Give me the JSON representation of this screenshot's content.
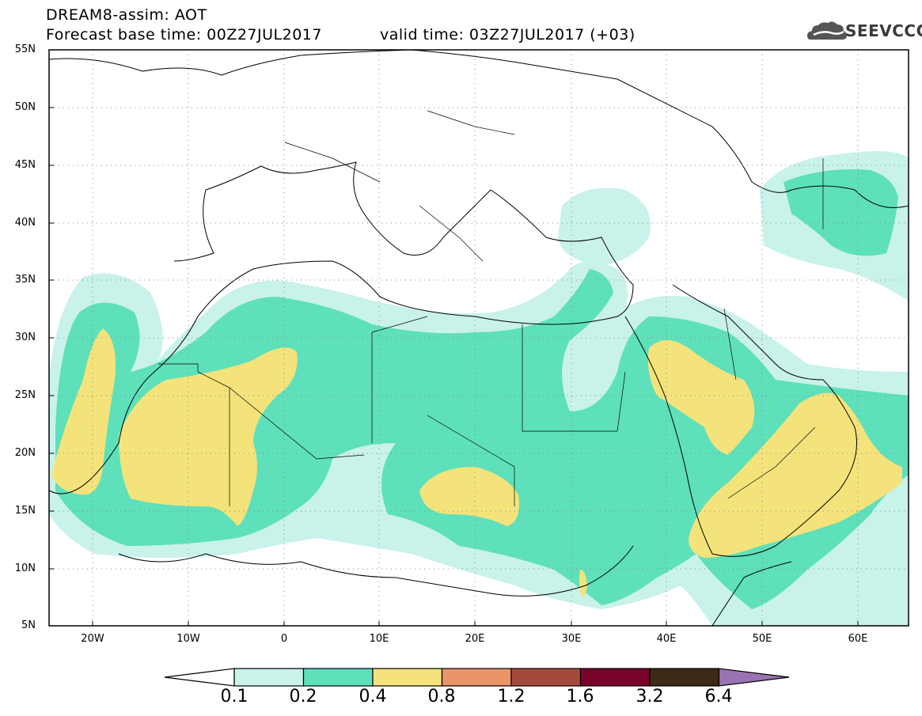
{
  "header": {
    "title_line1": "DREAM8-assim: AOT",
    "title_line2": "Forecast base time: 00Z27JUL2017",
    "title_line3": "valid time: 03Z27JUL2017 (+03)",
    "logo_text": "SEEVCCC"
  },
  "map": {
    "lat_labels": [
      "55N",
      "50N",
      "45N",
      "40N",
      "35N",
      "30N",
      "25N",
      "20N",
      "15N",
      "10N",
      "5N"
    ],
    "lon_labels": [
      "20W",
      "10W",
      "0",
      "10E",
      "20E",
      "30E",
      "40E",
      "50E",
      "60E"
    ],
    "lon_range": [
      -25,
      65
    ],
    "lat_range": [
      5,
      55
    ],
    "field_colors": {
      "low": "#c8f2ea",
      "mid": "#5ee0bb",
      "high": "#f4e37b"
    }
  },
  "colorbar": {
    "labels": [
      "0.1",
      "0.2",
      "0.4",
      "0.8",
      "1.2",
      "1.6",
      "3.2",
      "6.4"
    ],
    "colors": [
      "#ffffff",
      "#c8f2ea",
      "#5ee0bb",
      "#f4e37b",
      "#ea9468",
      "#a6493d",
      "#7a0329",
      "#3c2a16",
      "#9a74b2"
    ]
  }
}
